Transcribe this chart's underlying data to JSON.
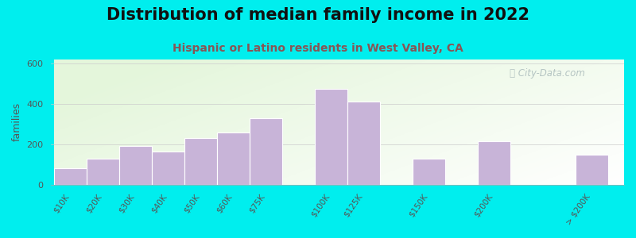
{
  "title": "Distribution of median family income in 2022",
  "subtitle": "Hispanic or Latino residents in West Valley, CA",
  "ylabel": "families",
  "categories": [
    "$10K",
    "$20K",
    "$30K",
    "$40K",
    "$50K",
    "$60K",
    "$75K",
    "$100K",
    "$125K",
    "$150K",
    "$200K",
    "> $200K"
  ],
  "values": [
    80,
    130,
    190,
    165,
    230,
    260,
    330,
    475,
    410,
    130,
    215,
    150
  ],
  "bar_color": "#C8B4D8",
  "bar_edge_color": "#ffffff",
  "ylim": [
    0,
    620
  ],
  "yticks": [
    0,
    200,
    400,
    600
  ],
  "outer_bg": "#00EEEE",
  "plot_bg_top_color": "#d8edcc",
  "plot_bg_bottom_color": "#f5faf0",
  "plot_bg_right_color": "#ffffff",
  "title_fontsize": 15,
  "subtitle_fontsize": 10,
  "ylabel_fontsize": 9,
  "tick_fontsize": 7.5,
  "title_color": "#111111",
  "subtitle_color": "#885555",
  "ylabel_color": "#555555",
  "tick_color": "#555555",
  "watermark_text": "ⓘ City-Data.com",
  "watermark_color": "#aabbbb",
  "grid_color": "#cccccc"
}
